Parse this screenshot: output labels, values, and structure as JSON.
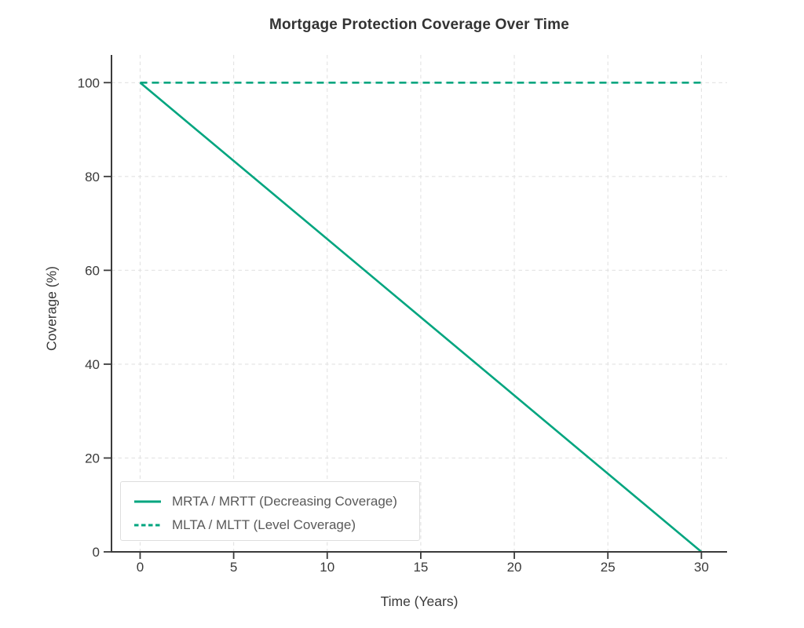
{
  "chart_data": {
    "type": "line",
    "title": "Mortgage Protection Coverage Over Time",
    "xlabel": "Time (Years)",
    "ylabel": "Coverage (%)",
    "x_ticks": [
      0,
      5,
      10,
      15,
      20,
      25,
      30
    ],
    "y_ticks": [
      0,
      20,
      40,
      60,
      80,
      100
    ],
    "xlim": [
      -1.53,
      31.37
    ],
    "ylim": [
      0,
      105.9
    ],
    "grid": true,
    "legend_position": "lower-left",
    "series": [
      {
        "name": "MRTA / MRTT (Decreasing Coverage)",
        "style": "solid",
        "color": "#00a57f",
        "x": [
          0,
          30
        ],
        "y": [
          100,
          0
        ]
      },
      {
        "name": "MLTA / MLTT (Level Coverage)",
        "style": "dashed",
        "color": "#00a57f",
        "x": [
          0,
          30
        ],
        "y": [
          100,
          100
        ]
      }
    ],
    "colors": {
      "line": "#00a57f",
      "grid": "#e2e2e2",
      "axis": "#3b3b3b",
      "tick_text": "#3a3a3a",
      "legend_text": "#595959",
      "legend_border": "#dedede"
    }
  }
}
